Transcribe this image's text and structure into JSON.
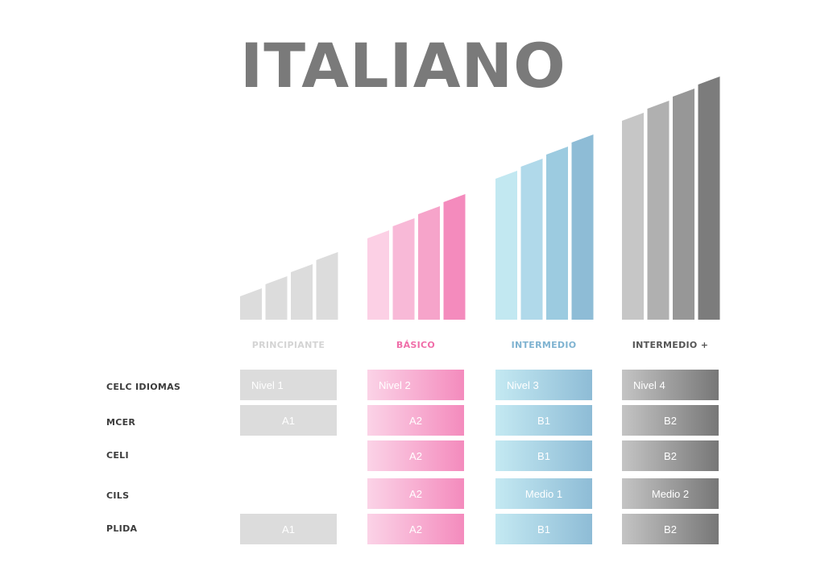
{
  "title": "ITALIANO",
  "colors": {
    "title": "#7a7a7a",
    "principiante": "#dcdcdc",
    "basico": "#f48bbd",
    "intermedio": "#8ebcd6",
    "intermedio_plus": "#777777",
    "row_label": "#3c3c3c"
  },
  "levels": [
    {
      "label": "PRINCIPIANTE",
      "color": "#d4d4d4"
    },
    {
      "label": "BÁSICO",
      "color": "#f06ea9"
    },
    {
      "label": "INTERMEDIO",
      "color": "#7fb3d1"
    },
    {
      "label": "INTERMEDIO +",
      "color": "#555555"
    }
  ],
  "rows": [
    {
      "label": "CELC IDIOMAS",
      "cells": [
        "Nivel 1",
        "Nivel 2",
        "Nivel 3",
        "Nivel 4"
      ]
    },
    {
      "label": "MCER",
      "cells": [
        "A1",
        "A2",
        "B1",
        "B2"
      ]
    },
    {
      "label": "CELI",
      "cells": [
        "",
        "A2",
        "B1",
        "B2"
      ]
    },
    {
      "label": "CILS",
      "cells": [
        "",
        "A2",
        "Medio 1",
        "Medio 2"
      ]
    },
    {
      "label": "PLIDA",
      "cells": [
        "A1",
        "A2",
        "B1",
        "B2"
      ]
    }
  ]
}
